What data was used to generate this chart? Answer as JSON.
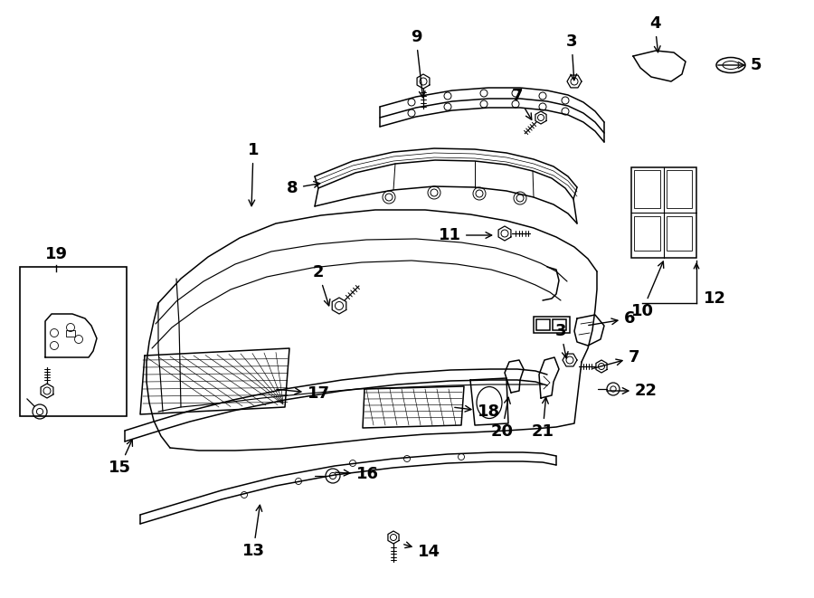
{
  "bg_color": "#ffffff",
  "line_color": "#000000",
  "lw": 1.1,
  "label_fs": 13
}
